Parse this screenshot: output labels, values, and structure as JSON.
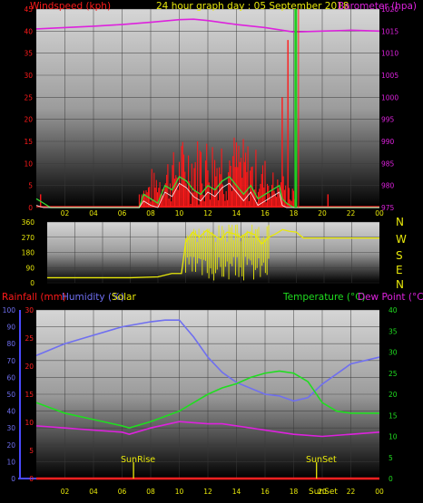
{
  "title": "24 hour graph day : 05 September 2018",
  "colors": {
    "wind": "#ff1a1a",
    "gust": "#ff1a1a",
    "avg_wind": "#33dd33",
    "avg_white": "#ffffff",
    "barometer": "#dd22dd",
    "direction": "#e8e80a",
    "humidity": "#6f6ff0",
    "temperature": "#20dd20",
    "dewpoint": "#dd22dd",
    "rain": "#ff2020",
    "solar": "#e8e80a",
    "axis_blue": "#4a4aff",
    "now_marker_green": "#22cc22",
    "now_marker_red": "#ff2222"
  },
  "chart_data": [
    {
      "type": "line",
      "panel": "wind",
      "legend_left": "Windspeed (kph)",
      "legend_right": "Barometer (hpa)",
      "x_ticks": [
        "02",
        "04",
        "06",
        "08",
        "10",
        "12",
        "14",
        "16",
        "18",
        "20",
        "22",
        "00"
      ],
      "y_left": {
        "min": 0,
        "max": 45,
        "ticks": [
          "0",
          "5",
          "10",
          "15",
          "20",
          "25",
          "30",
          "35",
          "40",
          "45"
        ]
      },
      "y_right": {
        "min": 975,
        "max": 1020,
        "ticks": [
          "975",
          "980",
          "985",
          "990",
          "995",
          "1000",
          "1005",
          "1010",
          "1015",
          "1020"
        ]
      },
      "series": [
        {
          "name": "Barometer (hpa)",
          "x": [
            0,
            2,
            4,
            6,
            8,
            10,
            11,
            12,
            14,
            16,
            18,
            20,
            22,
            24
          ],
          "y": [
            1015.5,
            1015.8,
            1016.1,
            1016.5,
            1017.0,
            1017.6,
            1017.7,
            1017.4,
            1016.5,
            1015.8,
            1014.8,
            1015.0,
            1015.2,
            1015.0
          ]
        }
      ],
      "wind_avg": {
        "x": [
          0,
          0.5,
          1,
          6.5,
          7.2,
          7.5,
          8,
          8.5,
          9,
          9.5,
          10,
          10.5,
          11,
          11.5,
          12,
          12.5,
          13,
          13.5,
          14,
          14.5,
          15,
          15.5,
          16,
          16.5,
          17,
          17.2,
          17.5,
          18,
          18.3,
          18.5,
          24
        ],
        "y": [
          2,
          1,
          0,
          0,
          0,
          3,
          2,
          1,
          5,
          4,
          7,
          6,
          4,
          3,
          5,
          4,
          6,
          7,
          5,
          3,
          5,
          2,
          3,
          4,
          5,
          2,
          1,
          0,
          0,
          0,
          0
        ]
      }
    },
    {
      "type": "scatter",
      "panel": "direction",
      "legend_right": [
        "N",
        "W",
        "S",
        "E",
        "N"
      ],
      "y": {
        "min": 0,
        "max": 360,
        "ticks": [
          "0",
          "90",
          "180",
          "270",
          "360"
        ]
      },
      "series": [
        {
          "name": "Wind Direction",
          "x": [
            0,
            3,
            6,
            8,
            9,
            9.7,
            10,
            10.5,
            11,
            11.5,
            12,
            12.5,
            13,
            13.5,
            14,
            14.5,
            15,
            15.5,
            16,
            16.5,
            17,
            17.5,
            18,
            18.5,
            20,
            22,
            24
          ],
          "y": [
            30,
            30,
            30,
            35,
            55,
            55,
            240,
            300,
            270,
            310,
            285,
            255,
            300,
            290,
            270,
            300,
            285,
            230,
            270,
            290,
            315,
            305,
            300,
            265,
            265,
            265,
            265
          ]
        }
      ]
    },
    {
      "type": "line",
      "panel": "temperature",
      "legend_left": [
        "Rainfall (mm)",
        "Humidity (%)"
      ],
      "legend_solar": "Solar",
      "legend_right": [
        "Temperature (°C)",
        "Dew Point (°C)"
      ],
      "y_humidity": {
        "min": 0,
        "max": 100,
        "ticks": [
          "0",
          "10",
          "20",
          "30",
          "40",
          "50",
          "60",
          "70",
          "80",
          "90",
          "100"
        ]
      },
      "y_rain": {
        "min": 0,
        "max": 30,
        "ticks": [
          "0",
          "5",
          "10",
          "15",
          "20",
          "25",
          "30"
        ]
      },
      "y_temp": {
        "min": 0,
        "max": 40,
        "ticks": [
          "0",
          "5",
          "10",
          "15",
          "20",
          "25",
          "30",
          "35",
          "40"
        ]
      },
      "annotations": [
        "SunRise",
        "SunSet",
        "SunSet"
      ],
      "series": [
        {
          "name": "Humidity (%)",
          "x": [
            0,
            2,
            4,
            6,
            8,
            9,
            10,
            11,
            12,
            13,
            14,
            16,
            17,
            18,
            19,
            20,
            21,
            22,
            24
          ],
          "y": [
            73,
            80,
            85,
            90,
            93,
            94,
            94,
            84,
            72,
            63,
            57,
            50,
            49,
            46,
            48,
            56,
            62,
            68,
            72
          ]
        },
        {
          "name": "Temperature (°C)",
          "x": [
            0,
            2,
            4,
            6,
            6.5,
            8,
            10,
            11,
            12,
            13,
            14,
            15,
            16,
            17,
            18,
            19,
            20,
            21,
            22,
            24
          ],
          "y": [
            18,
            15.5,
            14,
            12.5,
            12,
            13.5,
            16,
            18,
            20,
            21.5,
            22.5,
            24,
            25,
            25.5,
            25,
            23,
            18,
            16,
            15.5,
            15.5
          ]
        },
        {
          "name": "Dew Point (°C)",
          "x": [
            0,
            2,
            4,
            6,
            6.5,
            8,
            10,
            12,
            13,
            14,
            16,
            18,
            20,
            22,
            24
          ],
          "y": [
            12.5,
            12,
            11.5,
            11,
            10.5,
            12,
            13.5,
            13,
            13,
            12.5,
            11.5,
            10.5,
            10,
            10.5,
            11
          ]
        },
        {
          "name": "Rainfall (mm)",
          "x": [
            0,
            24
          ],
          "y": [
            0,
            0
          ]
        }
      ],
      "sun": {
        "rise": 6.8,
        "set": 19.6
      }
    }
  ]
}
